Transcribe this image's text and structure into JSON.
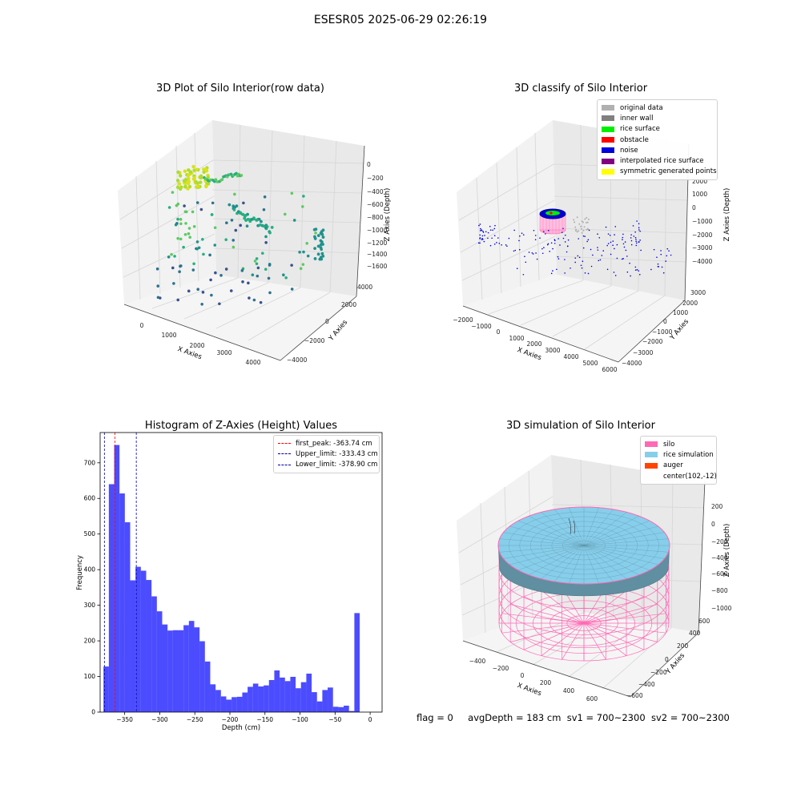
{
  "figure": {
    "suptitle": "ESESR05 2025-06-29 02:26:19",
    "status": {
      "flag": "flag = 0",
      "avg_depth": "avgDepth = 183 cm",
      "sv1": "sv1 = 700~2300",
      "sv2": "sv2 = 700~2300"
    }
  },
  "panel_raw": {
    "title": "3D Plot of Silo Interior(row data)",
    "xlabel": "X Axies",
    "ylabel": "Y Axies",
    "zlabel": "Z Axies (Depth)",
    "x_ticks": [
      "0",
      "1000",
      "2000",
      "3000",
      "4000"
    ],
    "y_ticks": [
      "4000",
      "2000",
      "0",
      "−2000",
      "−4000"
    ],
    "z_ticks": [
      "0",
      "−200",
      "−400",
      "−600",
      "−800",
      "−1000",
      "−1200",
      "−1400",
      "−1600"
    ]
  },
  "panel_classify": {
    "title": "3D classify of Silo Interior",
    "xlabel": "X Axies",
    "ylabel": "Y Axies",
    "zlabel": "Z Axies (Depth)",
    "x_ticks": [
      "−2000",
      "−1000",
      "0",
      "1000",
      "2000",
      "3000",
      "4000",
      "5000",
      "6000"
    ],
    "y_ticks": [
      "3000",
      "2000",
      "1000",
      "0",
      "−1000",
      "−2000",
      "−3000",
      "−4000"
    ],
    "z_ticks": [
      "2000",
      "1000",
      "0",
      "−1000",
      "−2000",
      "−3000",
      "−4000"
    ],
    "legend": [
      {
        "label": "original data",
        "color": "#b0b0b0"
      },
      {
        "label": "inner wall",
        "color": "#808080"
      },
      {
        "label": "rice surface",
        "color": "#00ee00"
      },
      {
        "label": "obstacle",
        "color": "#ff0000"
      },
      {
        "label": "noise",
        "color": "#0000dd"
      },
      {
        "label": "interpolated rice surface",
        "color": "#800080"
      },
      {
        "label": "symmetric generated points",
        "color": "#ffff00"
      }
    ]
  },
  "panel_sim": {
    "title": "3D simulation of Silo Interior",
    "xlabel": "X Axies",
    "ylabel": "Y Axies",
    "zlabel": "Z Axies (Depth)",
    "x_ticks": [
      "−400",
      "−200",
      "0",
      "200",
      "400",
      "600"
    ],
    "y_ticks": [
      "600",
      "400",
      "200",
      "0",
      "−200",
      "−400",
      "−600"
    ],
    "z_ticks": [
      "200",
      "0",
      "−200",
      "−400",
      "−600",
      "−800",
      "−1000"
    ],
    "legend": [
      {
        "label": "silo",
        "color": "#ff69b4"
      },
      {
        "label": "rice simulation",
        "color": "#87ceeb"
      },
      {
        "label": "auger",
        "color": "#ff4500"
      },
      {
        "label": "center(102,-12)",
        "color": ""
      }
    ],
    "colors": {
      "silo": "#ff69b4",
      "rice": "#87ceeb"
    }
  },
  "chart_data": {
    "type": "bar",
    "title": "Histogram of Z-Axies (Height) Values",
    "xlabel": "Depth (cm)",
    "ylabel": "Frequency",
    "xlim": [
      -385,
      17
    ],
    "ylim": [
      0,
      785
    ],
    "x_ticks": [
      -350,
      -300,
      -250,
      -200,
      -150,
      -100,
      -50,
      0
    ],
    "x_tick_labels": [
      "−350",
      "−300",
      "−250",
      "−200",
      "−150",
      "−100",
      "−50",
      "0"
    ],
    "y_ticks": [
      0,
      100,
      200,
      300,
      400,
      500,
      600,
      700
    ],
    "y_tick_labels": [
      "0",
      "100",
      "200",
      "300",
      "400",
      "500",
      "600",
      "700"
    ],
    "bin_start": -380.2,
    "bin_width": 7.61,
    "values": [
      128,
      640,
      750,
      614,
      533,
      370,
      408,
      397,
      371,
      325,
      283,
      246,
      229,
      230,
      230,
      244,
      256,
      238,
      199,
      142,
      78,
      62,
      44,
      35,
      42,
      43,
      55,
      71,
      80,
      72,
      75,
      90,
      117,
      97,
      87,
      99,
      67,
      84,
      108,
      56,
      30,
      62,
      69,
      15,
      14,
      18,
      3,
      278
    ],
    "bar_color": "#0000ff",
    "bar_opacity": 0.7,
    "vlines": [
      {
        "x": -363.74,
        "color": "#ff0000",
        "label": "first_peak: -363.74 cm"
      },
      {
        "x": -333.43,
        "color": "#0000aa",
        "label": "Upper_limit: -333.43 cm"
      },
      {
        "x": -378.9,
        "color": "#0000aa",
        "label": "Lower_limit: -378.90 cm"
      }
    ],
    "legend_position": "top-right"
  }
}
